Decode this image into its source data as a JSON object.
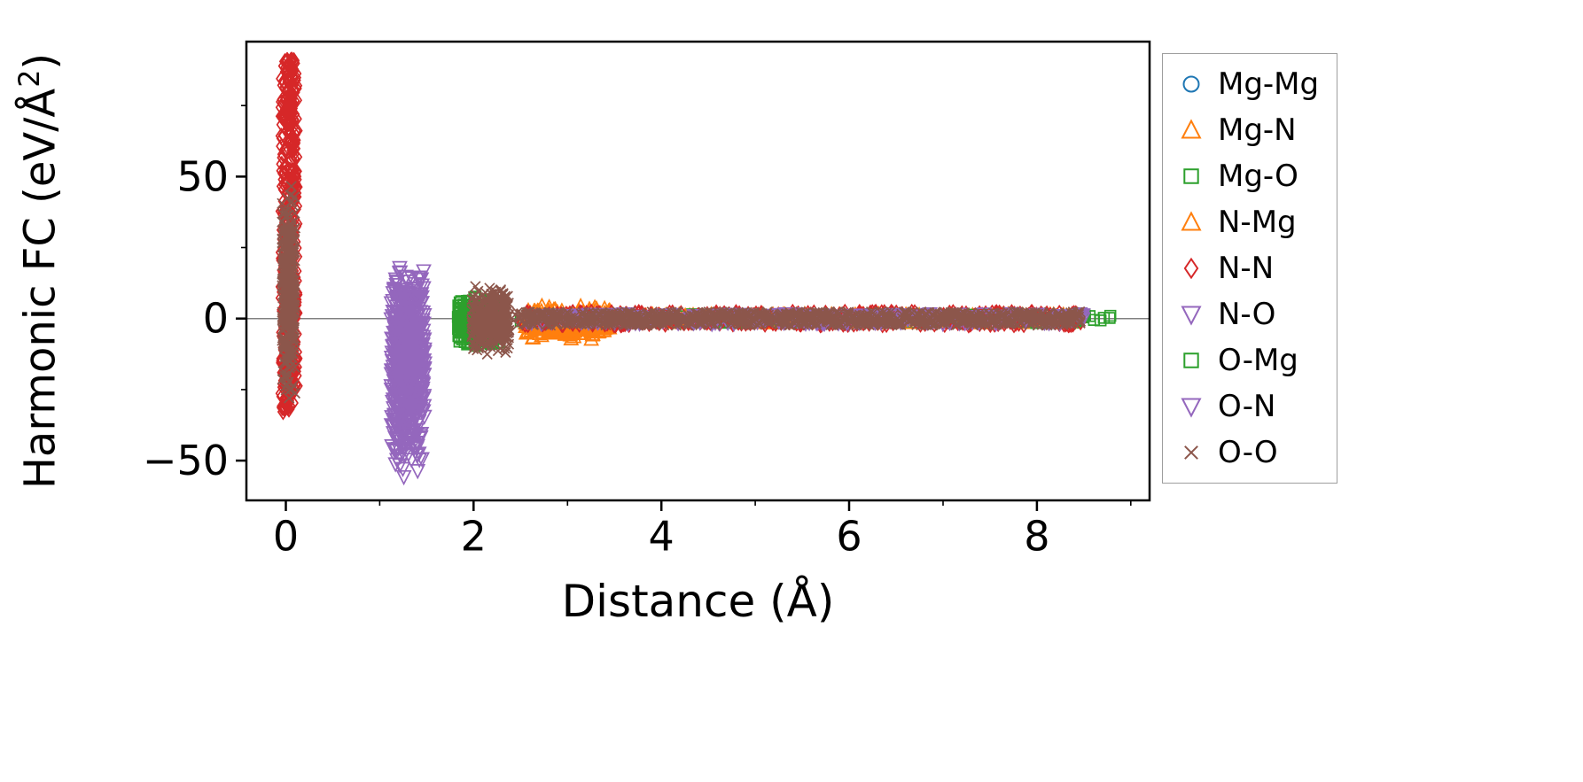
{
  "chart_data": {
    "type": "scatter",
    "title": "",
    "xlabel": "Distance (Å)",
    "ylabel": "Harmonic FC (eV/Å²)",
    "ylabel_parts": {
      "prefix": "Harmonic FC (eV/Å",
      "sup": "2",
      "suffix": ")"
    },
    "xlim": [
      -0.42,
      9.2
    ],
    "ylim": [
      -64,
      97.5
    ],
    "xticks": [
      {
        "v": 0,
        "label": "0"
      },
      {
        "v": 2,
        "label": "2"
      },
      {
        "v": 4,
        "label": "4"
      },
      {
        "v": 6,
        "label": "6"
      },
      {
        "v": 8,
        "label": "8"
      }
    ],
    "yticks": [
      {
        "v": -50,
        "label": "−50"
      },
      {
        "v": 0,
        "label": "0"
      },
      {
        "v": 50,
        "label": "50"
      }
    ],
    "xminor": [
      1,
      3,
      5,
      7,
      9
    ],
    "yminor": [
      -25,
      25,
      75
    ],
    "grid": false,
    "zero_line": {
      "y": 0,
      "color": "#808080"
    },
    "frame_color": "#000000",
    "legend_position": "outside upper right",
    "series": [
      {
        "name": "Mg-Mg",
        "marker": "circle",
        "color": "#1f77b4",
        "clusters": [
          {
            "x": [
              3.0,
              8.4
            ],
            "y": [
              -0.8,
              0.8
            ],
            "n": 80,
            "dist": "uniform"
          }
        ]
      },
      {
        "name": "Mg-N",
        "marker": "triangle-up",
        "color": "#ff7f0e",
        "clusters": [
          {
            "x": [
              2.55,
              3.45
            ],
            "y": [
              -7.5,
              4.5
            ],
            "n": 220,
            "dist": "tri"
          },
          {
            "x": [
              2.6,
              8.45
            ],
            "y": [
              -1.5,
              1.5
            ],
            "n": 220,
            "dist": "uniform"
          }
        ]
      },
      {
        "name": "Mg-O",
        "marker": "square",
        "color": "#2ca02c",
        "clusters": [
          {
            "x": [
              1.83,
              2.28
            ],
            "y": [
              -10.5,
              8
            ],
            "n": 260,
            "dist": "tri"
          },
          {
            "x": [
              2.5,
              8.52
            ],
            "y": [
              -1.6,
              1.6
            ],
            "n": 220,
            "dist": "uniform"
          },
          {
            "x": [
              8.56,
              8.86
            ],
            "y": [
              -1.2,
              1.2
            ],
            "n": 6,
            "dist": "uniform"
          }
        ]
      },
      {
        "name": "N-Mg",
        "marker": "triangle-up",
        "color": "#ff7f0e",
        "clusters": [
          {
            "x": [
              2.55,
              3.45
            ],
            "y": [
              -7,
              4
            ],
            "n": 120,
            "dist": "tri"
          },
          {
            "x": [
              2.6,
              8.45
            ],
            "y": [
              -1.5,
              1.5
            ],
            "n": 120,
            "dist": "uniform"
          }
        ]
      },
      {
        "name": "N-N",
        "marker": "diamond",
        "color": "#d62728",
        "clusters": [
          {
            "x": [
              -0.05,
              0.12
            ],
            "y": [
              -33,
              91
            ],
            "n": 430,
            "dist": "uniform"
          },
          {
            "x": [
              2.5,
              8.5
            ],
            "y": [
              -2.3,
              2.3
            ],
            "n": 430,
            "dist": "uniform"
          }
        ]
      },
      {
        "name": "N-O",
        "marker": "triangle-down",
        "color": "#9467bd",
        "clusters": [
          {
            "x": [
              1.12,
              1.48
            ],
            "y": [
              -57,
              24
            ],
            "n": 430,
            "dist": "tri"
          },
          {
            "x": [
              2.55,
              8.5
            ],
            "y": [
              -1.8,
              1.8
            ],
            "n": 260,
            "dist": "uniform"
          }
        ]
      },
      {
        "name": "O-Mg",
        "marker": "square",
        "color": "#2ca02c",
        "clusters": [
          {
            "x": [
              1.85,
              2.26
            ],
            "y": [
              -9.5,
              7.5
            ],
            "n": 140,
            "dist": "tri"
          }
        ]
      },
      {
        "name": "O-N",
        "marker": "triangle-down",
        "color": "#9467bd",
        "clusters": [
          {
            "x": [
              1.14,
              1.46
            ],
            "y": [
              -52,
              21
            ],
            "n": 220,
            "dist": "tri"
          }
        ]
      },
      {
        "name": "O-O",
        "marker": "x",
        "color": "#8c564b",
        "clusters": [
          {
            "x": [
              -0.04,
              0.1
            ],
            "y": [
              -32,
              50
            ],
            "n": 320,
            "dist": "tri"
          },
          {
            "x": [
              1.98,
              2.38
            ],
            "y": [
              -13.5,
              12
            ],
            "n": 280,
            "dist": "tri"
          },
          {
            "x": [
              2.45,
              8.47
            ],
            "y": [
              -2.4,
              2.4
            ],
            "n": 950,
            "dist": "uniform"
          }
        ]
      }
    ]
  }
}
